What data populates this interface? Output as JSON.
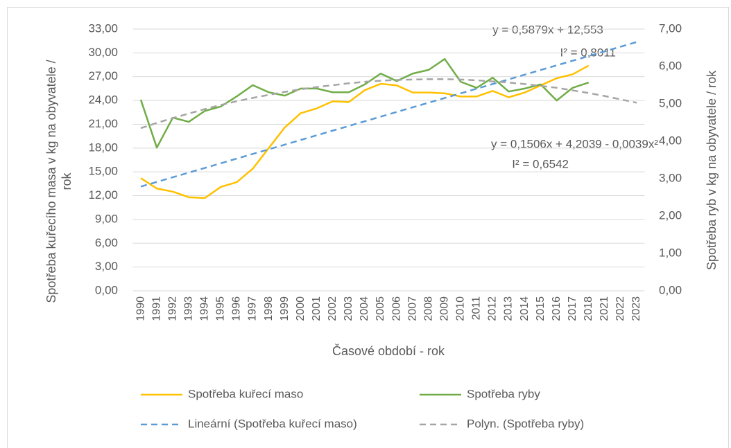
{
  "chart_data": {
    "type": "line",
    "categories": [
      "1990",
      "1991",
      "1992",
      "1993",
      "1994",
      "1995",
      "1996",
      "1997",
      "1998",
      "1999",
      "2000",
      "2001",
      "2002",
      "2003",
      "2004",
      "2005",
      "2006",
      "2007",
      "2008",
      "2009",
      "2010",
      "2011",
      "2012",
      "2013",
      "2014",
      "2015",
      "2016",
      "2017",
      "2018",
      "2021",
      "2022",
      "2023"
    ],
    "series": [
      {
        "name": "Spotřeba kuřecí maso",
        "color": "#ffc000",
        "axis": "y",
        "dash": false,
        "values": [
          14.2,
          12.9,
          12.5,
          11.8,
          11.7,
          13.1,
          13.7,
          15.4,
          18.0,
          20.6,
          22.4,
          23.0,
          23.9,
          23.8,
          25.3,
          26.1,
          25.9,
          25.0,
          25.0,
          24.9,
          24.5,
          24.5,
          25.2,
          24.4,
          25.0,
          25.9,
          26.8,
          27.3,
          28.4,
          null,
          null,
          null
        ]
      },
      {
        "name": "Spotřeba ryby",
        "color": "#70ad47",
        "axis": "y2",
        "dash": false,
        "values": [
          5.11,
          3.83,
          4.63,
          4.52,
          4.81,
          4.93,
          5.2,
          5.5,
          5.31,
          5.22,
          5.41,
          5.41,
          5.31,
          5.31,
          5.52,
          5.81,
          5.61,
          5.81,
          5.91,
          6.2,
          5.59,
          5.43,
          5.7,
          5.33,
          5.41,
          5.52,
          5.09,
          5.43,
          5.57,
          null,
          null,
          null
        ]
      },
      {
        "name": "Lineární (Spotřeba kuřecí maso)",
        "color": "#5b9bd5",
        "axis": "y",
        "dash": true,
        "values": [
          13.14,
          13.73,
          14.32,
          14.9,
          15.49,
          16.08,
          16.67,
          17.26,
          17.84,
          18.43,
          19.02,
          19.61,
          20.2,
          20.78,
          21.37,
          21.96,
          22.55,
          23.14,
          23.72,
          24.31,
          24.9,
          25.49,
          26.07,
          26.66,
          27.25,
          27.84,
          28.43,
          29.01,
          29.6,
          30.19,
          30.78,
          31.37
        ]
      },
      {
        "name": "Polyn. (Spotřeba ryby)",
        "color": "#a5a5a5",
        "axis": "y2",
        "dash": true,
        "values": [
          4.35,
          4.49,
          4.62,
          4.74,
          4.86,
          4.97,
          5.07,
          5.16,
          5.24,
          5.32,
          5.39,
          5.45,
          5.5,
          5.55,
          5.59,
          5.62,
          5.64,
          5.65,
          5.66,
          5.66,
          5.65,
          5.63,
          5.6,
          5.57,
          5.53,
          5.48,
          5.43,
          5.36,
          5.29,
          5.21,
          5.12,
          5.03
        ]
      }
    ],
    "ylim": [
      0,
      33
    ],
    "yticks": [
      {
        "value": 0,
        "label": "0,00"
      },
      {
        "value": 3,
        "label": "3,00"
      },
      {
        "value": 6,
        "label": "6,00"
      },
      {
        "value": 9,
        "label": "9,00"
      },
      {
        "value": 12,
        "label": "12,00"
      },
      {
        "value": 15,
        "label": "15,00"
      },
      {
        "value": 18,
        "label": "18,00"
      },
      {
        "value": 21,
        "label": "21,00"
      },
      {
        "value": 24,
        "label": "24,00"
      },
      {
        "value": 27,
        "label": "27,00"
      },
      {
        "value": 30,
        "label": "30,00"
      },
      {
        "value": 33,
        "label": "33,00"
      }
    ],
    "y2lim": [
      0,
      7
    ],
    "y2ticks": [
      {
        "value": 0,
        "label": "0,00"
      },
      {
        "value": 1,
        "label": "1,00"
      },
      {
        "value": 2,
        "label": "2,00"
      },
      {
        "value": 3,
        "label": "3,00"
      },
      {
        "value": 4,
        "label": "4,00"
      },
      {
        "value": 5,
        "label": "5,00"
      },
      {
        "value": 6,
        "label": "6,00"
      },
      {
        "value": 7,
        "label": "7,00"
      }
    ],
    "grid": true,
    "legend": "bottom",
    "xlabel": "Časové období - rok",
    "ylabel": [
      "Spotřeba kuřecího masa v kg na obyvatele  /",
      "rok"
    ],
    "y2label": "Spotřeba ryb v kg na obyvatele / rok",
    "annotations": [
      "y = 0,5879x + 12,553",
      "I² = 0,8011",
      "y = 0,1506x + 4,2039 - 0,0039x²",
      "I² = 0,6542"
    ]
  }
}
